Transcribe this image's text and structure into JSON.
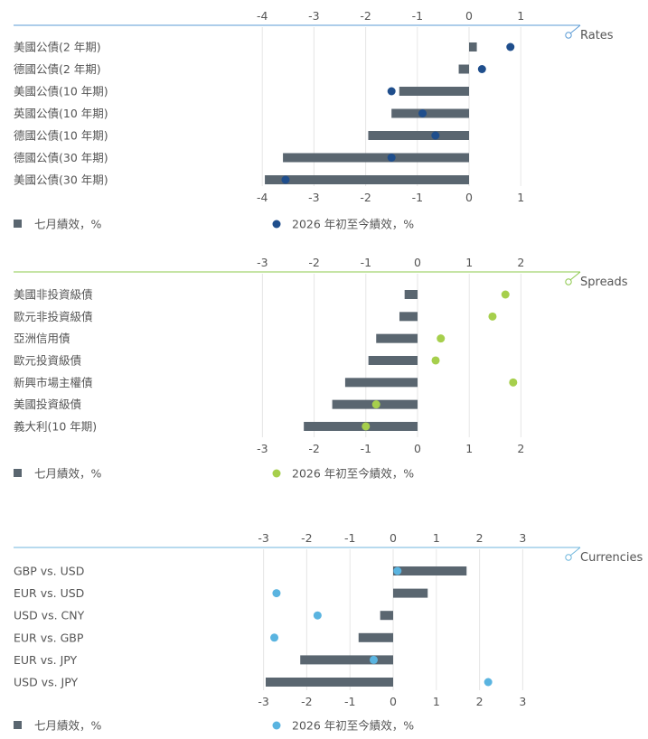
{
  "legend": {
    "bar_label": "七月績效，%",
    "dot_label": "2026 年初至今績效，%"
  },
  "chart_data": [
    {
      "type": "bar",
      "title": "Rates",
      "categories": [
        "美國公債(2 年期)",
        "德國公債(2 年期)",
        "美國公債(10 年期)",
        "英國公債(10 年期)",
        "德國公債(10 年期)",
        "德國公債(30 年期)",
        "美國公債(30 年期)"
      ],
      "ticks": [
        "-4",
        "-3",
        "-2",
        "-1",
        "0",
        "1"
      ],
      "xlim": [
        -4,
        1
      ],
      "series": [
        {
          "name": "七月績效，%",
          "kind": "bar",
          "values": [
            0.15,
            -0.2,
            -1.35,
            -1.5,
            -1.95,
            -3.6,
            -3.95
          ]
        },
        {
          "name": "2026 年初至今績效，%",
          "kind": "dot",
          "values": [
            0.8,
            0.25,
            -1.5,
            -0.9,
            -0.65,
            -1.5,
            -3.55
          ]
        }
      ],
      "colors": {
        "accent": "#5b9bd5",
        "bar": "#5a6670",
        "dot": "#1f4e8c"
      }
    },
    {
      "type": "bar",
      "title": "Spreads",
      "categories": [
        "美國非投資級債",
        "歐元非投資級債",
        "亞洲信用債",
        "歐元投資級債",
        "新興市場主權債",
        "美國投資級債",
        "義大利(10 年期)"
      ],
      "ticks": [
        "-3",
        "-2",
        "-1",
        "0",
        "1",
        "2"
      ],
      "xlim": [
        -3,
        2
      ],
      "series": [
        {
          "name": "七月績效，%",
          "kind": "bar",
          "values": [
            -0.25,
            -0.35,
            -0.8,
            -0.95,
            -1.4,
            -1.65,
            -2.2
          ]
        },
        {
          "name": "2026 年初至今績效，%",
          "kind": "dot",
          "values": [
            1.7,
            1.45,
            0.45,
            0.35,
            1.85,
            -0.8,
            -1.0
          ]
        }
      ],
      "colors": {
        "accent": "#8cc84b",
        "bar": "#5a6670",
        "dot": "#a6cf4c"
      }
    },
    {
      "type": "bar",
      "title": "Currencies",
      "categories": [
        "GBP vs. USD",
        "EUR vs. USD",
        "USD vs. CNY",
        "EUR vs. GBP",
        "EUR vs. JPY",
        "USD vs. JPY"
      ],
      "ticks": [
        "-3",
        "-2",
        "-1",
        "0",
        "1",
        "2",
        "3"
      ],
      "xlim": [
        -3,
        3
      ],
      "series": [
        {
          "name": "七月績效，%",
          "kind": "bar",
          "values": [
            1.7,
            0.8,
            -0.3,
            -0.8,
            -2.15,
            -2.95
          ]
        },
        {
          "name": "2026 年初至今績效，%",
          "kind": "dot",
          "values": [
            0.1,
            -2.7,
            -1.75,
            -2.75,
            -0.45,
            2.2
          ]
        }
      ],
      "colors": {
        "accent": "#6fb6dc",
        "bar": "#5a6670",
        "dot": "#5ab4e0"
      }
    }
  ]
}
